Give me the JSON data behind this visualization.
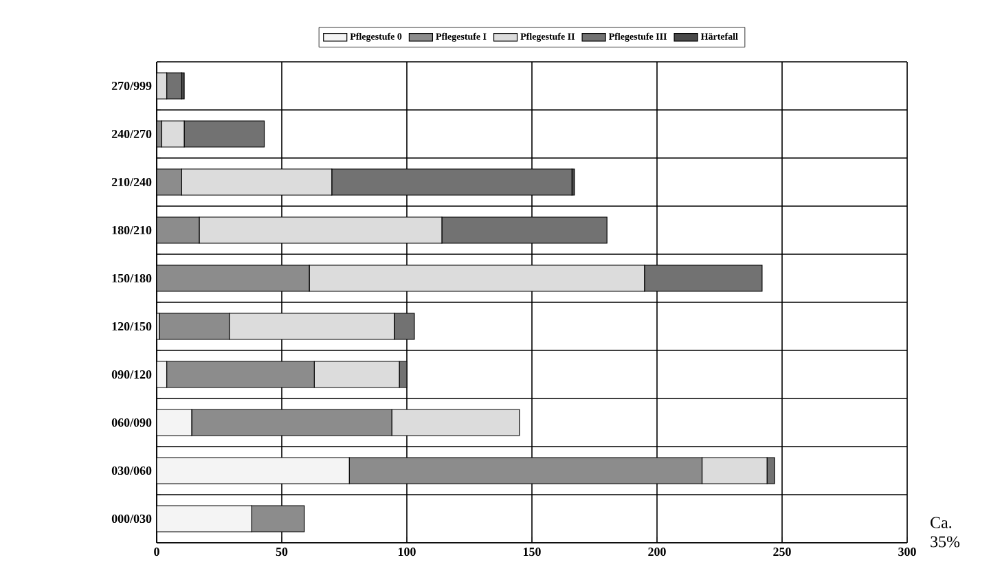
{
  "chart_data": {
    "type": "bar",
    "orientation": "horizontal",
    "stacked": true,
    "categories": [
      "270/999",
      "240/270",
      "210/240",
      "180/210",
      "150/180",
      "120/150",
      "090/120",
      "060/090",
      "030/060",
      "000/030"
    ],
    "series": [
      {
        "name": "Pflegestufe 0",
        "color": "#f4f4f4",
        "values": [
          0,
          0,
          0,
          0,
          0,
          1,
          4,
          14,
          77,
          38
        ]
      },
      {
        "name": "Pflegestufe I",
        "color": "#8c8c8c",
        "values": [
          0,
          2,
          10,
          17,
          61,
          28,
          59,
          80,
          141,
          21
        ]
      },
      {
        "name": "Pflegestufe II",
        "color": "#dcdcdc",
        "values": [
          4,
          9,
          60,
          97,
          134,
          66,
          34,
          51,
          26,
          0
        ]
      },
      {
        "name": "Pflegestufe III",
        "color": "#727272",
        "values": [
          6,
          32,
          96,
          66,
          47,
          8,
          3,
          0,
          3,
          0
        ]
      },
      {
        "name": "Härtefall",
        "color": "#4a4a4a",
        "values": [
          1,
          0,
          1,
          0,
          0,
          0,
          0,
          0,
          0,
          0
        ]
      }
    ],
    "xlim": [
      0,
      300
    ],
    "xticks": [
      0,
      50,
      100,
      150,
      200,
      250,
      300
    ],
    "grid": true,
    "legend": "top",
    "annotations": [
      "Ca. 35%"
    ]
  }
}
